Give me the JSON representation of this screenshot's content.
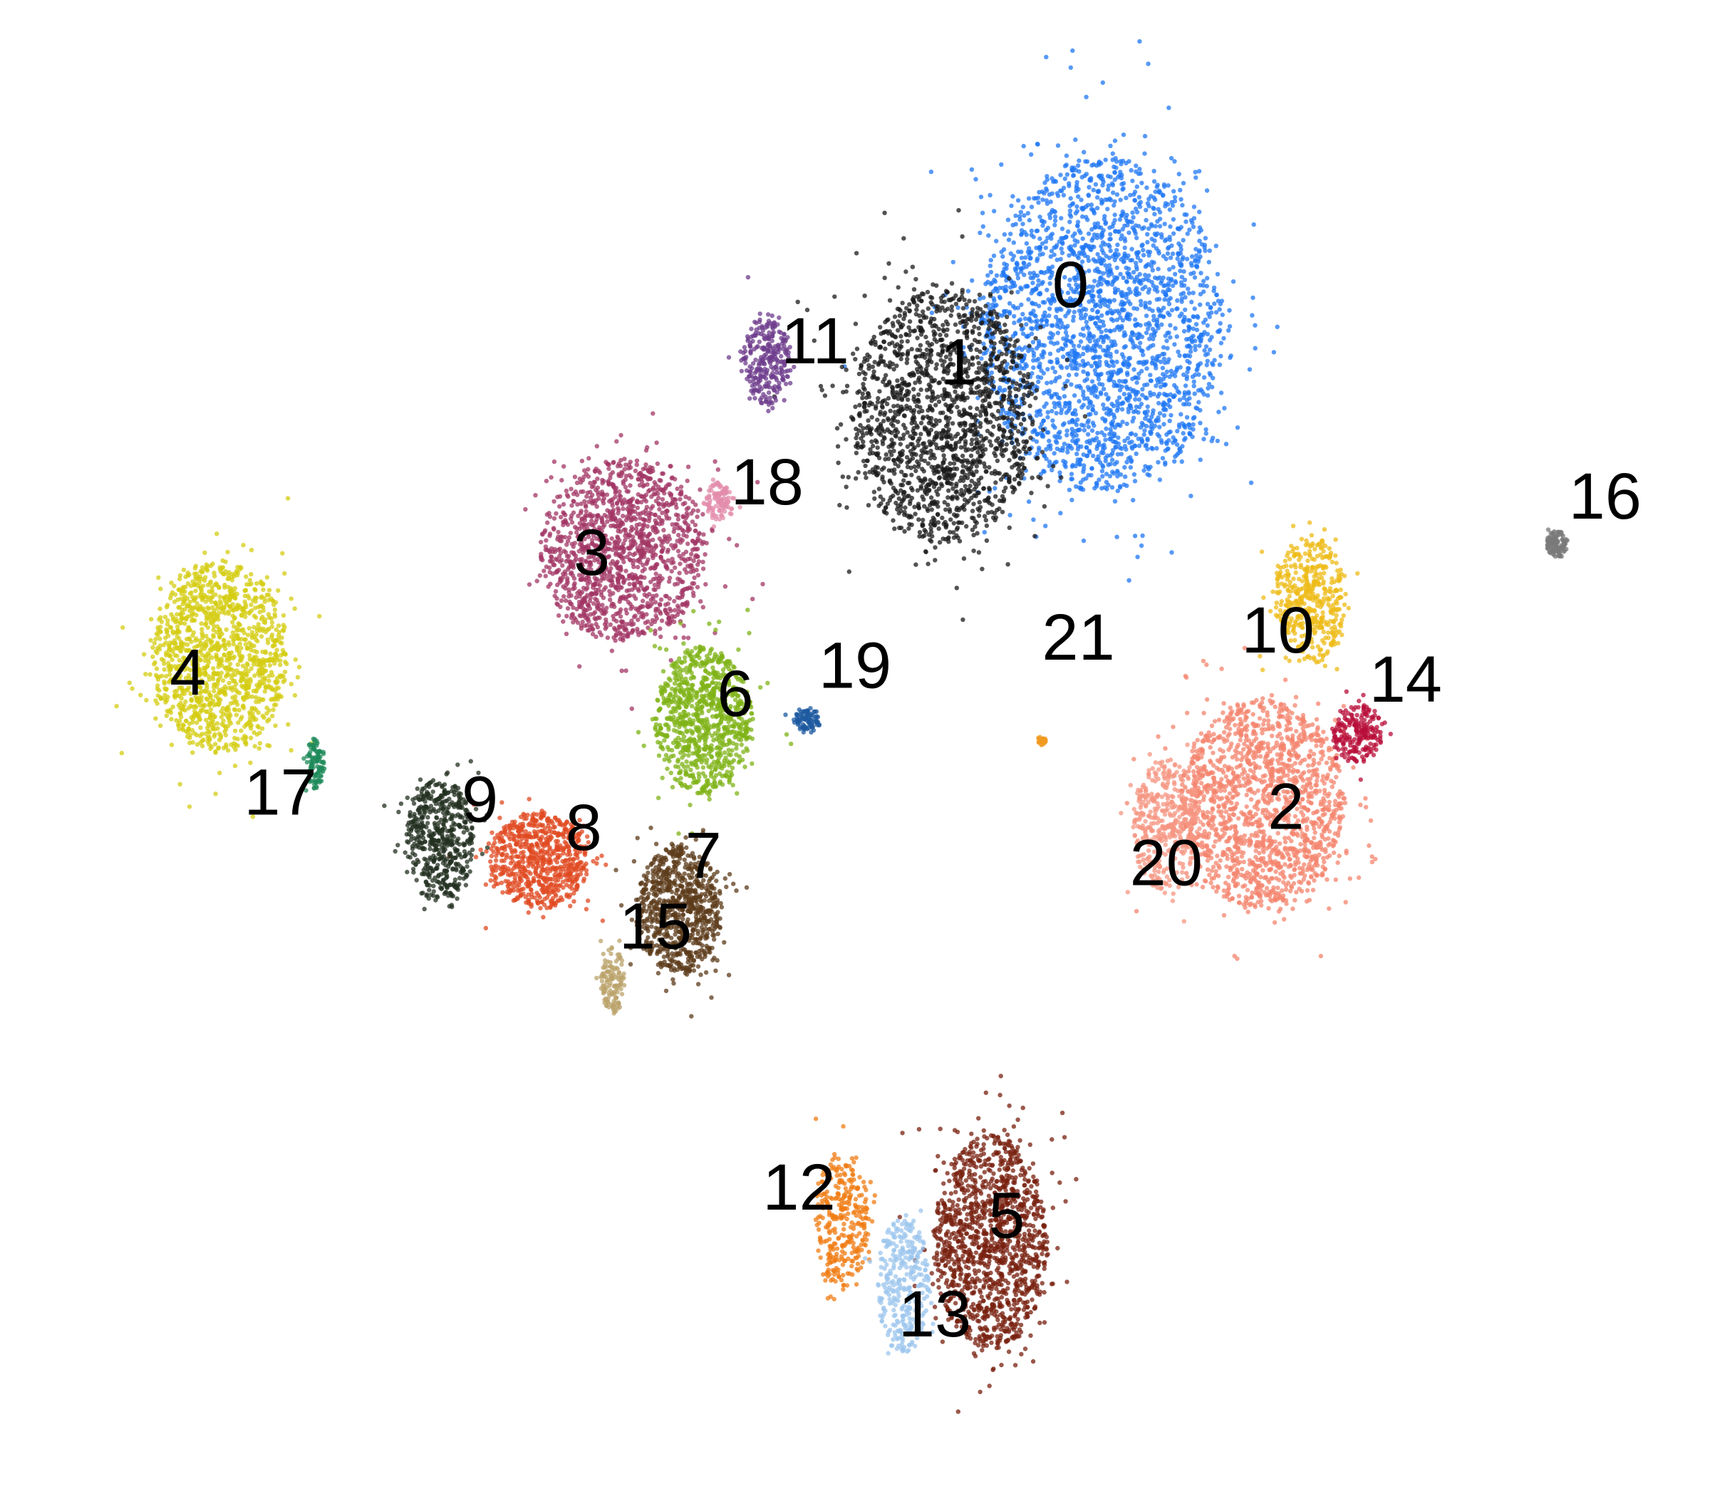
{
  "chart_data": {
    "type": "scatter",
    "title": "",
    "xlabel": "",
    "ylabel": "",
    "axes_visible": false,
    "grid": false,
    "legend": "none",
    "xlim": [
      0,
      100
    ],
    "ylim": [
      0,
      100
    ],
    "clusters": [
      {
        "label": "0",
        "color": "#1f77f4",
        "x": 65.5,
        "y": 80.0,
        "sx": 8.0,
        "sy": 12.5,
        "n": 2400
      },
      {
        "label": "1",
        "color": "#1a1a1a",
        "x": 55.5,
        "y": 73.5,
        "sx": 6.0,
        "sy": 9.5,
        "n": 1700
      },
      {
        "label": "2",
        "color": "#f4846e",
        "x": 75.5,
        "y": 46.0,
        "sx": 5.5,
        "sy": 7.8,
        "n": 1600
      },
      {
        "label": "3",
        "color": "#a13564",
        "x": 35.5,
        "y": 64.0,
        "sx": 5.5,
        "sy": 6.8,
        "n": 1400
      },
      {
        "label": "4",
        "color": "#d4cc12",
        "x": 10.2,
        "y": 56.5,
        "sx": 4.5,
        "sy": 7.2,
        "n": 1300
      },
      {
        "label": "5",
        "color": "#78200f",
        "x": 58.5,
        "y": 15.0,
        "sx": 3.8,
        "sy": 8.0,
        "n": 1300
      },
      {
        "label": "6",
        "color": "#7fb317",
        "x": 40.5,
        "y": 52.0,
        "sx": 3.2,
        "sy": 5.5,
        "n": 900
      },
      {
        "label": "7",
        "color": "#5c3b1a",
        "x": 39.0,
        "y": 38.5,
        "sx": 2.8,
        "sy": 4.8,
        "n": 800
      },
      {
        "label": "8",
        "color": "#e04a22",
        "x": 30.2,
        "y": 42.0,
        "sx": 3.3,
        "sy": 3.6,
        "n": 700
      },
      {
        "label": "9",
        "color": "#233020",
        "x": 24.0,
        "y": 43.5,
        "sx": 2.2,
        "sy": 4.6,
        "n": 550
      },
      {
        "label": "10",
        "color": "#eebb17",
        "x": 78.5,
        "y": 60.5,
        "sx": 2.3,
        "sy": 4.8,
        "n": 450
      },
      {
        "label": "11",
        "color": "#6e3c8c",
        "x": 44.5,
        "y": 77.5,
        "sx": 1.6,
        "sy": 3.4,
        "n": 280
      },
      {
        "label": "12",
        "color": "#f07c14",
        "x": 49.2,
        "y": 16.5,
        "sx": 1.8,
        "sy": 5.0,
        "n": 320
      },
      {
        "label": "13",
        "color": "#9cc6ee",
        "x": 53.0,
        "y": 12.0,
        "sx": 1.7,
        "sy": 5.2,
        "n": 320
      },
      {
        "label": "14",
        "color": "#b80f3a",
        "x": 81.5,
        "y": 51.0,
        "sx": 1.7,
        "sy": 2.2,
        "n": 220
      },
      {
        "label": "15",
        "color": "#bba36b",
        "x": 34.8,
        "y": 33.5,
        "sx": 0.8,
        "sy": 2.5,
        "n": 130
      },
      {
        "label": "16",
        "color": "#7a7a7a",
        "x": 94.0,
        "y": 64.5,
        "sx": 0.7,
        "sy": 1.0,
        "n": 110
      },
      {
        "label": "17",
        "color": "#1e8a5a",
        "x": 16.2,
        "y": 49.0,
        "sx": 0.6,
        "sy": 2.0,
        "n": 100
      },
      {
        "label": "18",
        "color": "#e38cab",
        "x": 41.5,
        "y": 67.5,
        "sx": 1.0,
        "sy": 1.4,
        "n": 110
      },
      {
        "label": "19",
        "color": "#1e5aa0",
        "x": 47.0,
        "y": 52.0,
        "sx": 0.9,
        "sy": 0.9,
        "n": 90
      },
      {
        "label": "20",
        "color": "#f59682",
        "x": 69.5,
        "y": 44.5,
        "sx": 2.2,
        "sy": 5.0,
        "n": 400
      },
      {
        "label": "21",
        "color": "#f09a20",
        "x": 61.7,
        "y": 50.5,
        "sx": 0.3,
        "sy": 0.3,
        "n": 25
      }
    ],
    "labels": [
      {
        "text": "0",
        "x": 63.5,
        "y": 82.5
      },
      {
        "text": "1",
        "x": 56.5,
        "y": 77.0
      },
      {
        "text": "2",
        "x": 77.0,
        "y": 45.5
      },
      {
        "text": "3",
        "x": 33.5,
        "y": 63.5
      },
      {
        "text": "4",
        "x": 8.2,
        "y": 55.0
      },
      {
        "text": "5",
        "x": 59.5,
        "y": 16.5
      },
      {
        "text": "6",
        "x": 42.5,
        "y": 53.5
      },
      {
        "text": "7",
        "x": 40.5,
        "y": 42.0
      },
      {
        "text": "8",
        "x": 33.0,
        "y": 44.0
      },
      {
        "text": "9",
        "x": 26.5,
        "y": 46.0
      },
      {
        "text": "10",
        "x": 76.5,
        "y": 58.0
      },
      {
        "text": "11",
        "x": 47.5,
        "y": 78.5
      },
      {
        "text": "12",
        "x": 46.5,
        "y": 18.5
      },
      {
        "text": "13",
        "x": 55.0,
        "y": 9.5
      },
      {
        "text": "14",
        "x": 84.5,
        "y": 54.5
      },
      {
        "text": "15",
        "x": 37.5,
        "y": 37.0
      },
      {
        "text": "16",
        "x": 97.0,
        "y": 67.5
      },
      {
        "text": "17",
        "x": 14.0,
        "y": 46.5
      },
      {
        "text": "18",
        "x": 44.5,
        "y": 68.5
      },
      {
        "text": "19",
        "x": 50.0,
        "y": 55.5
      },
      {
        "text": "20",
        "x": 69.5,
        "y": 41.5
      },
      {
        "text": "21",
        "x": 64.0,
        "y": 57.5
      }
    ]
  }
}
